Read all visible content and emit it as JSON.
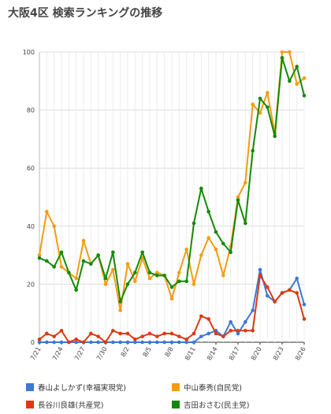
{
  "chart_data": {
    "type": "line",
    "title": "大阪4区 検索ランキングの推移",
    "ylim": [
      0,
      100
    ],
    "yticks": [
      0,
      20,
      40,
      60,
      80,
      100
    ],
    "grid": true,
    "legend_position": "bottom",
    "x": [
      "7/21",
      "7/22",
      "7/23",
      "7/24",
      "7/25",
      "7/26",
      "7/27",
      "7/28",
      "7/29",
      "7/30",
      "7/31",
      "8/1",
      "8/2",
      "8/3",
      "8/4",
      "8/5",
      "8/6",
      "8/7",
      "8/8",
      "8/9",
      "8/10",
      "8/11",
      "8/12",
      "8/13",
      "8/14",
      "8/15",
      "8/16",
      "8/17",
      "8/18",
      "8/19",
      "8/20",
      "8/21",
      "8/22",
      "8/23",
      "8/24",
      "8/25",
      "8/26"
    ],
    "xtick_labels": [
      "7/21",
      "7/24",
      "7/27",
      "7/30",
      "8/2",
      "8/5",
      "8/8",
      "8/11",
      "8/14",
      "8/17",
      "8/20",
      "8/23",
      "8/26"
    ],
    "series": [
      {
        "name": "春山よしかず(幸福実現党)",
        "color": "#3c78d8",
        "values": [
          0,
          0,
          0,
          0,
          0,
          0,
          0,
          0,
          0,
          0,
          0,
          0,
          0,
          0,
          0,
          0,
          0,
          0,
          0,
          0,
          0,
          0,
          2,
          3,
          4,
          2,
          7,
          3,
          7,
          11,
          25,
          16,
          14,
          17,
          18,
          22,
          13
        ]
      },
      {
        "name": "中山泰秀(自民党)",
        "color": "#f39c12",
        "values": [
          30,
          45,
          40,
          26,
          24,
          22,
          35,
          27,
          30,
          20,
          25,
          11,
          27,
          21,
          29,
          22,
          24,
          23,
          15,
          24,
          32,
          20,
          30,
          36,
          32,
          23,
          33,
          50,
          55,
          82,
          79,
          86,
          72,
          100,
          100,
          89,
          91
        ]
      },
      {
        "name": "長谷川良雄(共産党)",
        "color": "#dd3911",
        "values": [
          1,
          3,
          2,
          4,
          0,
          1,
          0,
          3,
          2,
          0,
          4,
          3,
          3,
          1,
          2,
          3,
          2,
          3,
          3,
          2,
          1,
          3,
          9,
          8,
          3,
          2,
          4,
          4,
          4,
          4,
          23,
          19,
          14,
          17,
          18,
          17,
          8
        ]
      },
      {
        "name": "吉田おさむ(民主党)",
        "color": "#138a07",
        "values": [
          29,
          28,
          26,
          31,
          24,
          18,
          28,
          27,
          30,
          22,
          31,
          14,
          20,
          24,
          31,
          24,
          23,
          23,
          19,
          21,
          21,
          41,
          53,
          45,
          38,
          34,
          31,
          49,
          41,
          66,
          84,
          81,
          71,
          98,
          90,
          95,
          85
        ]
      }
    ]
  }
}
